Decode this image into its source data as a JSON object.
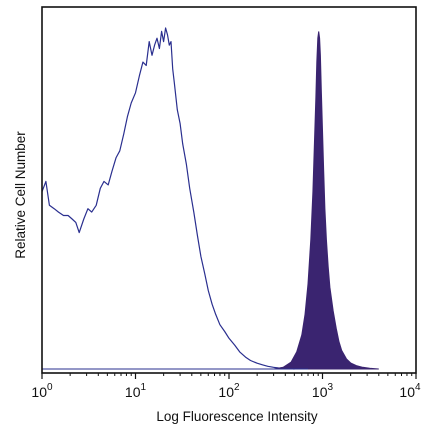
{
  "chart_data": {
    "type": "area",
    "xlabel": "Log Fluorescence Intensity",
    "ylabel": "Relative Cell Number",
    "x_scale": "log",
    "xlim": [
      1,
      10000
    ],
    "ylim": [
      0,
      1
    ],
    "xticks": [
      {
        "value": 1,
        "base": "10",
        "exp": "0"
      },
      {
        "value": 10,
        "base": "10",
        "exp": "1"
      },
      {
        "value": 100,
        "base": "10",
        "exp": "2"
      },
      {
        "value": 1000,
        "base": "10",
        "exp": "3"
      },
      {
        "value": 10000,
        "base": "10",
        "exp": "4"
      }
    ],
    "grid": false,
    "legend": "none",
    "series": [
      {
        "style": "outline",
        "color": "#2a2f8f",
        "x": [
          1.0,
          1.1,
          1.2,
          1.35,
          1.5,
          1.7,
          1.9,
          2.1,
          2.3,
          2.5,
          2.8,
          3.1,
          3.4,
          3.8,
          4.2,
          4.6,
          5.1,
          5.6,
          6.2,
          6.8,
          7.5,
          8.2,
          9.0,
          10.0,
          11.0,
          12.0,
          13.0,
          14.0,
          15.0,
          16.0,
          17.0,
          18.0,
          19.0,
          20.0,
          21.0,
          22.0,
          23.0,
          24.0,
          25.0,
          26.0,
          27.0,
          28.0,
          30.0,
          32.0,
          35.0,
          38.0,
          42.0,
          46.0,
          50.0,
          55.0,
          60.0,
          66.0,
          72.0,
          80.0,
          90.0,
          100.0,
          115.0,
          130.0,
          150.0,
          170.0,
          200.0,
          230.0,
          260.0,
          300.0,
          340.0,
          400.0,
          500.0
        ],
        "y": [
          0.52,
          0.55,
          0.48,
          0.47,
          0.46,
          0.45,
          0.45,
          0.44,
          0.43,
          0.4,
          0.44,
          0.47,
          0.46,
          0.48,
          0.53,
          0.55,
          0.54,
          0.58,
          0.62,
          0.64,
          0.69,
          0.74,
          0.78,
          0.81,
          0.86,
          0.9,
          0.89,
          0.96,
          0.92,
          0.95,
          0.97,
          0.94,
          0.99,
          0.96,
          1.0,
          0.98,
          0.95,
          0.96,
          0.88,
          0.84,
          0.8,
          0.76,
          0.72,
          0.66,
          0.6,
          0.53,
          0.46,
          0.39,
          0.33,
          0.28,
          0.23,
          0.19,
          0.16,
          0.13,
          0.11,
          0.09,
          0.07,
          0.05,
          0.035,
          0.025,
          0.017,
          0.012,
          0.008,
          0.005,
          0.003,
          0.002,
          0.0
        ]
      },
      {
        "style": "filled",
        "color": "#3a2470",
        "x": [
          300,
          380,
          460,
          530,
          600,
          650,
          700,
          750,
          790,
          820,
          850,
          870,
          890,
          910,
          930,
          950,
          970,
          1000,
          1030,
          1060,
          1100,
          1150,
          1200,
          1300,
          1400,
          1500,
          1600,
          1800,
          2000,
          2300,
          2700,
          3200,
          4000
        ],
        "y": [
          0.0,
          0.005,
          0.02,
          0.05,
          0.1,
          0.16,
          0.25,
          0.38,
          0.52,
          0.66,
          0.8,
          0.9,
          0.97,
          0.99,
          0.97,
          0.92,
          0.82,
          0.7,
          0.58,
          0.47,
          0.38,
          0.3,
          0.24,
          0.17,
          0.12,
          0.08,
          0.055,
          0.03,
          0.018,
          0.01,
          0.005,
          0.002,
          0.0
        ]
      }
    ]
  }
}
